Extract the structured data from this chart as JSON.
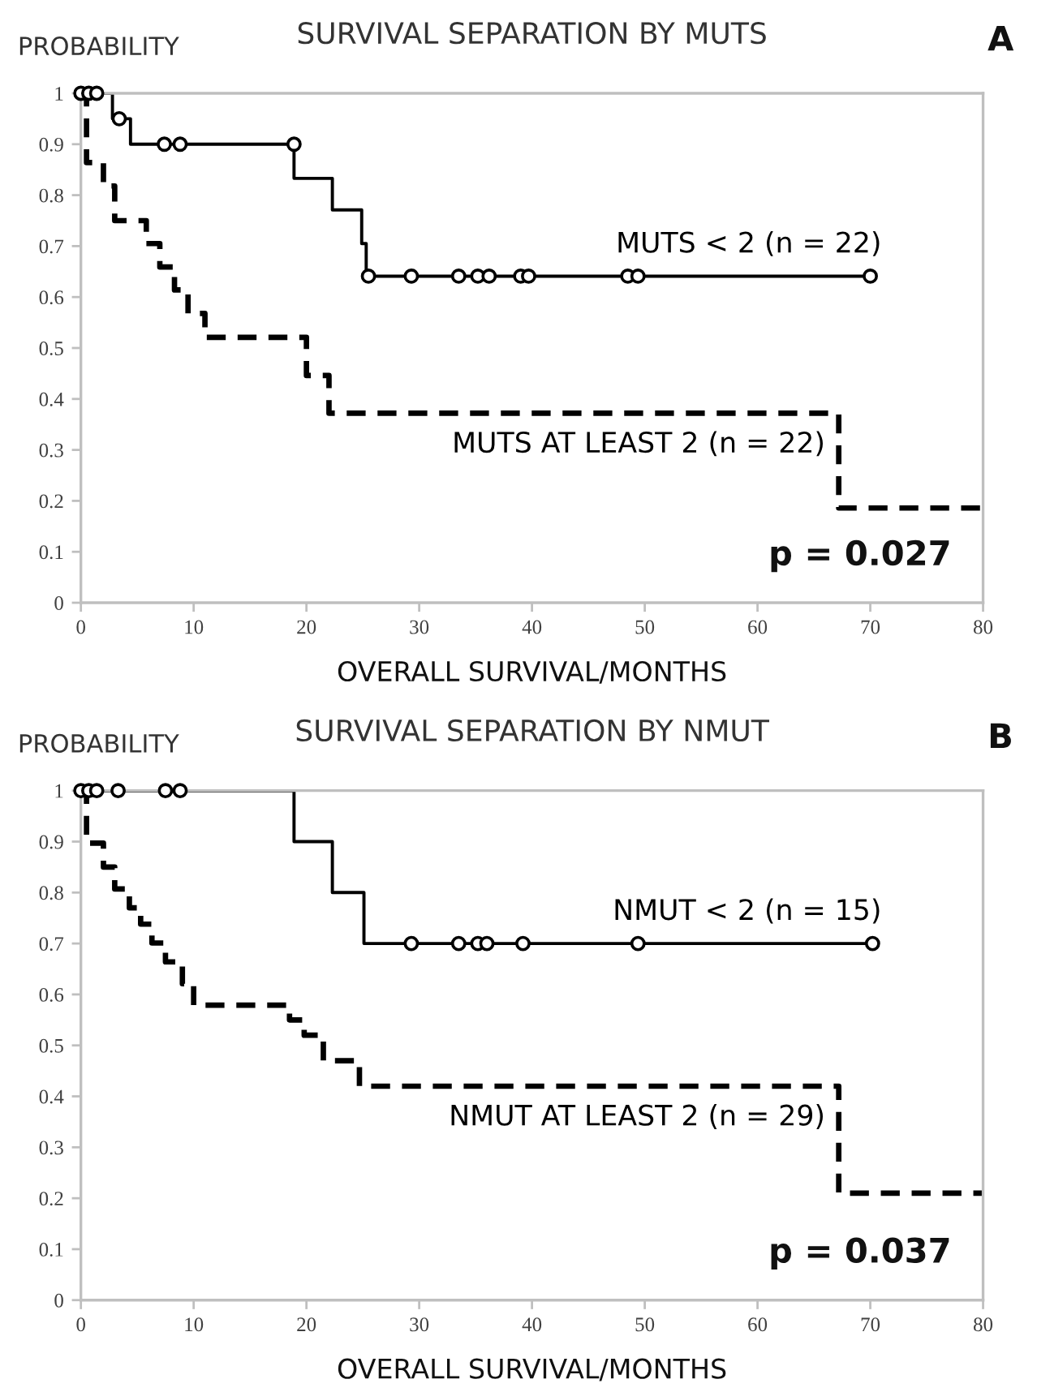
{
  "chart_data": [
    {
      "type": "step",
      "title": "SURVIVAL SEPARATION BY MUTS",
      "ylabel": "PROBABILITY",
      "xlabel": "OVERALL SURVIVAL/MONTHS",
      "annotations": [
        "A",
        "p = 0.027"
      ],
      "xlim": [
        0,
        80
      ],
      "xticks": [
        0,
        10,
        20,
        30,
        40,
        50,
        60,
        70,
        80
      ],
      "ylim": [
        0,
        1
      ],
      "yticks": [
        0,
        0.1,
        0.2,
        0.3,
        0.4,
        0.5,
        0.6,
        0.7,
        0.8,
        0.9,
        1
      ],
      "grid": false,
      "legend": false,
      "series": [
        {
          "name": "MUTS < 2 (n = 22)",
          "color": "#000000",
          "line_style": "solid",
          "x": [
            0,
            2.8,
            4.4,
            18.9,
            22.3,
            24.9,
            25.3,
            70
          ],
          "values": [
            1,
            0.95,
            0.9,
            0.833,
            0.771,
            0.705,
            0.641,
            0.641
          ]
        },
        {
          "type": "scatter",
          "marker": "circle",
          "color": "#000000",
          "x": [
            0,
            0.7,
            1.4,
            3.4,
            7.4,
            8.8,
            18.9,
            25.5,
            29.3,
            33.5,
            35.2,
            36.2,
            39.0,
            39.7,
            48.5,
            49.4,
            70
          ],
          "values": [
            1,
            1,
            1,
            0.95,
            0.9,
            0.9,
            0.9,
            0.641,
            0.641,
            0.641,
            0.641,
            0.641,
            0.641,
            0.641,
            0.641,
            0.641,
            0.641
          ]
        },
        {
          "name": "MUTS AT LEAST 2 (n = 22)",
          "color": "#000000",
          "line_style": "dashed",
          "x": [
            0,
            0.5,
            2.0,
            3.0,
            5.8,
            7.0,
            8.3,
            9.5,
            11.0,
            20.0,
            22.0,
            67.2,
            80
          ],
          "values": [
            1,
            0.864,
            0.818,
            0.75,
            0.705,
            0.659,
            0.614,
            0.568,
            0.521,
            0.446,
            0.372,
            0.186,
            0.186
          ]
        }
      ]
    },
    {
      "type": "step",
      "title": "SURVIVAL SEPARATION BY NMUT",
      "ylabel": "PROBABILITY",
      "xlabel": "OVERALL SURVIVAL/MONTHS",
      "annotations": [
        "B",
        "p = 0.037"
      ],
      "xlim": [
        0,
        80
      ],
      "xticks": [
        0,
        10,
        20,
        30,
        40,
        50,
        60,
        70,
        80
      ],
      "ylim": [
        0,
        1
      ],
      "yticks": [
        0,
        0.1,
        0.2,
        0.3,
        0.4,
        0.5,
        0.6,
        0.7,
        0.8,
        0.9,
        1
      ],
      "grid": false,
      "legend": false,
      "series": [
        {
          "name": "NMUT < 2 (n = 15)",
          "color": "#000000",
          "line_style": "solid",
          "x": [
            0,
            18.9,
            22.3,
            25.1,
            70
          ],
          "values": [
            1,
            0.9,
            0.8,
            0.7,
            0.7
          ]
        },
        {
          "type": "scatter",
          "marker": "circle",
          "color": "#000000",
          "x": [
            0,
            0.7,
            1.4,
            3.3,
            7.5,
            8.8,
            29.3,
            33.5,
            35.2,
            36.0,
            39.2,
            49.4,
            70.2
          ],
          "values": [
            1,
            1,
            1,
            1,
            1,
            1,
            0.7,
            0.7,
            0.7,
            0.7,
            0.7,
            0.7,
            0.7
          ]
        },
        {
          "name": "NMUT AT LEAST 2 (n = 29)",
          "color": "#000000",
          "line_style": "dashed",
          "x": [
            0,
            0.5,
            2.0,
            3.0,
            4.3,
            5.3,
            6.3,
            7.5,
            9.0,
            10.0,
            18.5,
            19.8,
            21.5,
            24.7,
            67.2,
            80
          ],
          "values": [
            1,
            0.897,
            0.85,
            0.807,
            0.77,
            0.738,
            0.701,
            0.664,
            0.621,
            0.579,
            0.55,
            0.52,
            0.47,
            0.42,
            0.21,
            0.21
          ]
        }
      ]
    }
  ]
}
